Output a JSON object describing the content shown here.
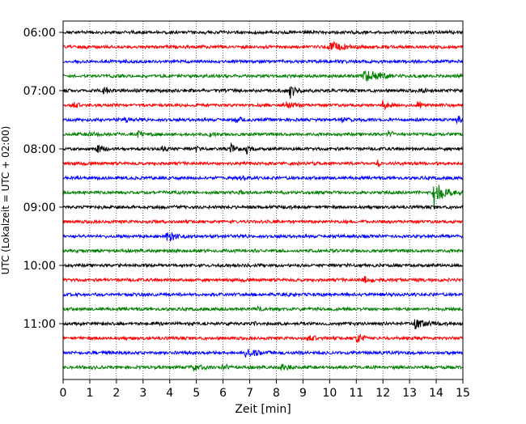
{
  "chart_data": {
    "type": "line",
    "title": "",
    "xlabel": "Zeit  [min]",
    "ylabel": "UTC (Lokalzeit = UTC + 02:00)",
    "xlim": [
      0,
      15
    ],
    "x_ticks": [
      "0",
      "1",
      "2",
      "3",
      "4",
      "5",
      "6",
      "7",
      "8",
      "9",
      "10",
      "11",
      "12",
      "13",
      "14",
      "15"
    ],
    "y_ticks": [
      "06:00",
      "07:00",
      "08:00",
      "09:00",
      "10:00",
      "11:00"
    ],
    "grid": "vertical dotted",
    "line_minutes": 15,
    "colors": [
      "#000000",
      "#ff0000",
      "#0000ff",
      "#008000"
    ],
    "traces": [
      {
        "start": "06:00",
        "color": "#000000",
        "events": []
      },
      {
        "start": "06:15",
        "color": "#ff0000",
        "events": [
          {
            "t": 10.0,
            "amp": 0.8,
            "dur": 1.2
          }
        ]
      },
      {
        "start": "06:30",
        "color": "#0000ff",
        "events": []
      },
      {
        "start": "06:45",
        "color": "#008000",
        "events": [
          {
            "t": 11.3,
            "amp": 1.0,
            "dur": 1.5
          },
          {
            "t": 14.8,
            "amp": 0.4,
            "dur": 0.3
          }
        ]
      },
      {
        "start": "07:00",
        "color": "#000000",
        "events": [
          {
            "t": 1.5,
            "amp": 0.5,
            "dur": 0.5
          },
          {
            "t": 8.5,
            "amp": 1.0,
            "dur": 0.6
          },
          {
            "t": 13.5,
            "amp": 0.4,
            "dur": 0.5
          }
        ]
      },
      {
        "start": "07:15",
        "color": "#ff0000",
        "events": [
          {
            "t": 0.4,
            "amp": 0.4,
            "dur": 0.5
          },
          {
            "t": 8.4,
            "amp": 0.4,
            "dur": 0.6
          },
          {
            "t": 12.0,
            "amp": 0.6,
            "dur": 0.8
          },
          {
            "t": 13.3,
            "amp": 0.5,
            "dur": 0.4
          }
        ]
      },
      {
        "start": "07:30",
        "color": "#0000ff",
        "events": [
          {
            "t": 2.3,
            "amp": 0.6,
            "dur": 0.4
          },
          {
            "t": 6.5,
            "amp": 0.4,
            "dur": 0.5
          },
          {
            "t": 10.5,
            "amp": 0.3,
            "dur": 0.5
          },
          {
            "t": 14.8,
            "amp": 0.5,
            "dur": 0.4
          }
        ]
      },
      {
        "start": "07:45",
        "color": "#008000",
        "events": [
          {
            "t": 1.0,
            "amp": 0.4,
            "dur": 0.6
          },
          {
            "t": 2.8,
            "amp": 0.4,
            "dur": 0.6
          },
          {
            "t": 5.5,
            "amp": 0.3,
            "dur": 0.5
          },
          {
            "t": 12.2,
            "amp": 0.4,
            "dur": 0.4
          }
        ]
      },
      {
        "start": "08:00",
        "color": "#000000",
        "events": [
          {
            "t": 1.3,
            "amp": 0.7,
            "dur": 0.5
          },
          {
            "t": 3.7,
            "amp": 0.5,
            "dur": 0.4
          },
          {
            "t": 5.0,
            "amp": 0.5,
            "dur": 0.3
          },
          {
            "t": 6.3,
            "amp": 0.6,
            "dur": 0.6
          },
          {
            "t": 6.9,
            "amp": 0.6,
            "dur": 0.4
          }
        ]
      },
      {
        "start": "08:15",
        "color": "#ff0000",
        "events": [
          {
            "t": 11.8,
            "amp": 0.3,
            "dur": 0.3
          }
        ]
      },
      {
        "start": "08:30",
        "color": "#0000ff",
        "events": [
          {
            "t": 6.7,
            "amp": 0.3,
            "dur": 0.3
          }
        ]
      },
      {
        "start": "08:45",
        "color": "#008000",
        "events": [
          {
            "t": 6.6,
            "amp": 0.3,
            "dur": 0.3
          },
          {
            "t": 13.9,
            "amp": 2.0,
            "dur": 1.1
          }
        ]
      },
      {
        "start": "09:00",
        "color": "#000000",
        "events": []
      },
      {
        "start": "09:15",
        "color": "#ff0000",
        "events": []
      },
      {
        "start": "09:30",
        "color": "#0000ff",
        "events": [
          {
            "t": 3.9,
            "amp": 0.8,
            "dur": 0.8
          }
        ]
      },
      {
        "start": "09:45",
        "color": "#008000",
        "events": []
      },
      {
        "start": "10:00",
        "color": "#000000",
        "events": []
      },
      {
        "start": "10:15",
        "color": "#ff0000",
        "events": [
          {
            "t": 11.3,
            "amp": 0.5,
            "dur": 0.8
          }
        ]
      },
      {
        "start": "10:30",
        "color": "#0000ff",
        "events": []
      },
      {
        "start": "10:45",
        "color": "#008000",
        "events": [
          {
            "t": 7.3,
            "amp": 0.3,
            "dur": 0.3
          }
        ]
      },
      {
        "start": "11:00",
        "color": "#000000",
        "events": [
          {
            "t": 7.2,
            "amp": 0.3,
            "dur": 0.3
          },
          {
            "t": 13.2,
            "amp": 0.7,
            "dur": 1.0
          }
        ]
      },
      {
        "start": "11:15",
        "color": "#ff0000",
        "events": [
          {
            "t": 9.2,
            "amp": 0.4,
            "dur": 0.8
          },
          {
            "t": 11.0,
            "amp": 0.8,
            "dur": 0.7
          }
        ]
      },
      {
        "start": "11:30",
        "color": "#0000ff",
        "events": [
          {
            "t": 6.8,
            "amp": 0.5,
            "dur": 1.5
          }
        ]
      },
      {
        "start": "11:45",
        "color": "#008000",
        "events": [
          {
            "t": 4.8,
            "amp": 0.5,
            "dur": 0.7
          },
          {
            "t": 6.0,
            "amp": 0.4,
            "dur": 0.5
          },
          {
            "t": 8.2,
            "amp": 0.5,
            "dur": 0.6
          }
        ]
      }
    ]
  }
}
